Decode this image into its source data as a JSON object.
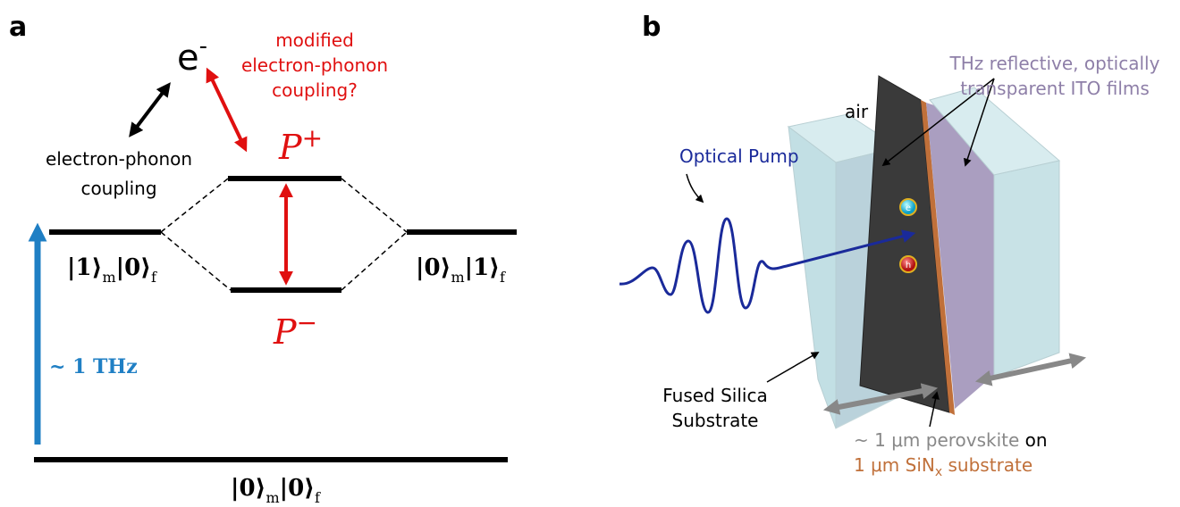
{
  "panel_a": {
    "label": "a",
    "electron": {
      "symbol": "e",
      "charge": "-"
    },
    "modified_coupling": [
      "modified",
      "electron-phonon",
      "coupling?"
    ],
    "coupling": [
      "electron-phonon",
      "coupling"
    ],
    "upper_polariton": {
      "symbol": "P",
      "sign": "+"
    },
    "lower_polariton": {
      "symbol": "P",
      "sign": "−"
    },
    "state_left": [
      "|1⟩",
      "m",
      "|0⟩",
      "f"
    ],
    "state_right": [
      "|0⟩",
      "m",
      "|1⟩",
      "f"
    ],
    "state_ground": [
      "|0⟩",
      "m",
      "|0⟩",
      "f"
    ],
    "frequency": "~ 1 THz"
  },
  "panel_b": {
    "label": "b",
    "ito_films": [
      "THz reflective, optically",
      "transparent ITO films"
    ],
    "air": "air",
    "pump": "Optical Pump",
    "substrate": [
      "Fused Silica",
      "Substrate"
    ],
    "perovskite": [
      "~ 1 μm perovskite",
      " on"
    ],
    "sin": [
      "1 μm SiN",
      "x",
      " substrate"
    ],
    "electron": "e",
    "hole": "h"
  }
}
